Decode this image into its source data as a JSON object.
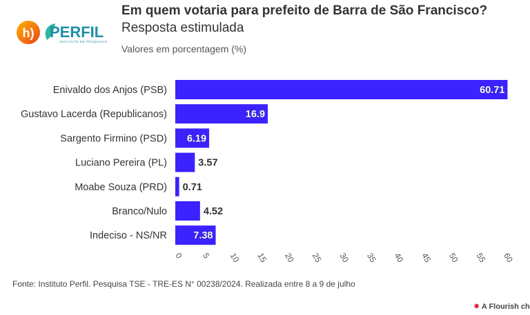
{
  "header": {
    "title": "Em quem votaria para prefeito de Barra de São Francisco?",
    "subtitle": "Resposta estimulada",
    "units": "Valores em porcentagem (%)"
  },
  "logos": {
    "left_logo_text": "h)",
    "brand_text": "PERFIL",
    "brand_subtext": "INSTITUTO DE PESQUISAS"
  },
  "chart_data": {
    "type": "bar",
    "orientation": "horizontal",
    "categories": [
      "Enivaldo dos Anjos (PSB)",
      "Gustavo Lacerda (Republicanos)",
      "Sargento Firmino (PSD)",
      "Luciano Pereira (PL)",
      "Moabe Souza (PRD)",
      "Branco/Nulo",
      "Indeciso - NS/NR"
    ],
    "values": [
      60.71,
      16.9,
      6.19,
      3.57,
      0.71,
      4.52,
      7.38
    ],
    "value_labels": [
      "60.71",
      "16.9",
      "6.19",
      "3.57",
      "0.71",
      "4.52",
      "7.38"
    ],
    "xlim": [
      0,
      65
    ],
    "xticks": [
      "0",
      "5",
      "10",
      "15",
      "20",
      "25",
      "30",
      "35",
      "40",
      "45",
      "50",
      "55",
      "60",
      "65"
    ],
    "grid": false,
    "bar_color": "#3b22ff"
  },
  "footer": {
    "source": "Fonte: Instituto Perfil. Pesquisa TSE - TRE-ES N° 00238/2024. Realizada entre 8 a 9 de julho",
    "credit_star": "✸",
    "credit": "A Flourish ch"
  }
}
